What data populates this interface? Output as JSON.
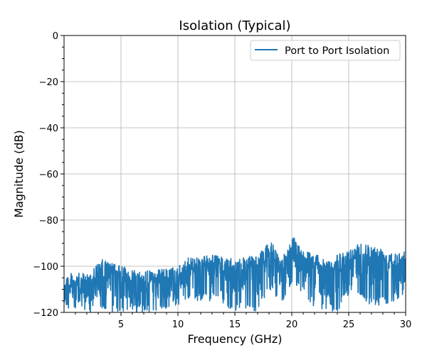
{
  "chart_data": {
    "type": "line",
    "title": "Isolation (Typical)",
    "xlabel": "Frequency (GHz)",
    "ylabel": "Magnitude (dB)",
    "xlim": [
      0,
      30
    ],
    "ylim": [
      -120,
      0
    ],
    "grid": true,
    "legend_position": "top-right",
    "x_ticks": [
      5,
      10,
      15,
      20,
      25,
      30
    ],
    "x_tick_labels": [
      "5",
      "10",
      "15",
      "20",
      "25",
      "30"
    ],
    "y_ticks": [
      0,
      -20,
      -40,
      -60,
      -80,
      -100,
      -120
    ],
    "y_tick_labels": [
      "0",
      "−20",
      "−40",
      "−60",
      "−80",
      "−100",
      "−120"
    ],
    "series": [
      {
        "name": "Port to Port Isolation",
        "color": "#1f77b4",
        "envelope_x_ghz": [
          0,
          2,
          3.4,
          5,
          7,
          9,
          10,
          11,
          13,
          15,
          16,
          17,
          18.2,
          19,
          20.2,
          21,
          22,
          23,
          24,
          25,
          26,
          27,
          28,
          29,
          30
        ],
        "upper_db": [
          -103,
          -103,
          -97,
          -100,
          -102,
          -101,
          -100,
          -96,
          -95,
          -97,
          -96,
          -95,
          -89,
          -97,
          -87,
          -93,
          -94,
          -98,
          -95,
          -93,
          -89,
          -91,
          -92,
          -94,
          -93
        ],
        "lower_db": [
          -120,
          -120,
          -120,
          -120,
          -120,
          -119,
          -117,
          -115,
          -115,
          -120,
          -118,
          -120,
          -110,
          -120,
          -108,
          -112,
          -118,
          -120,
          -120,
          -112,
          -113,
          -118,
          -117,
          -115,
          -112
        ]
      }
    ]
  }
}
